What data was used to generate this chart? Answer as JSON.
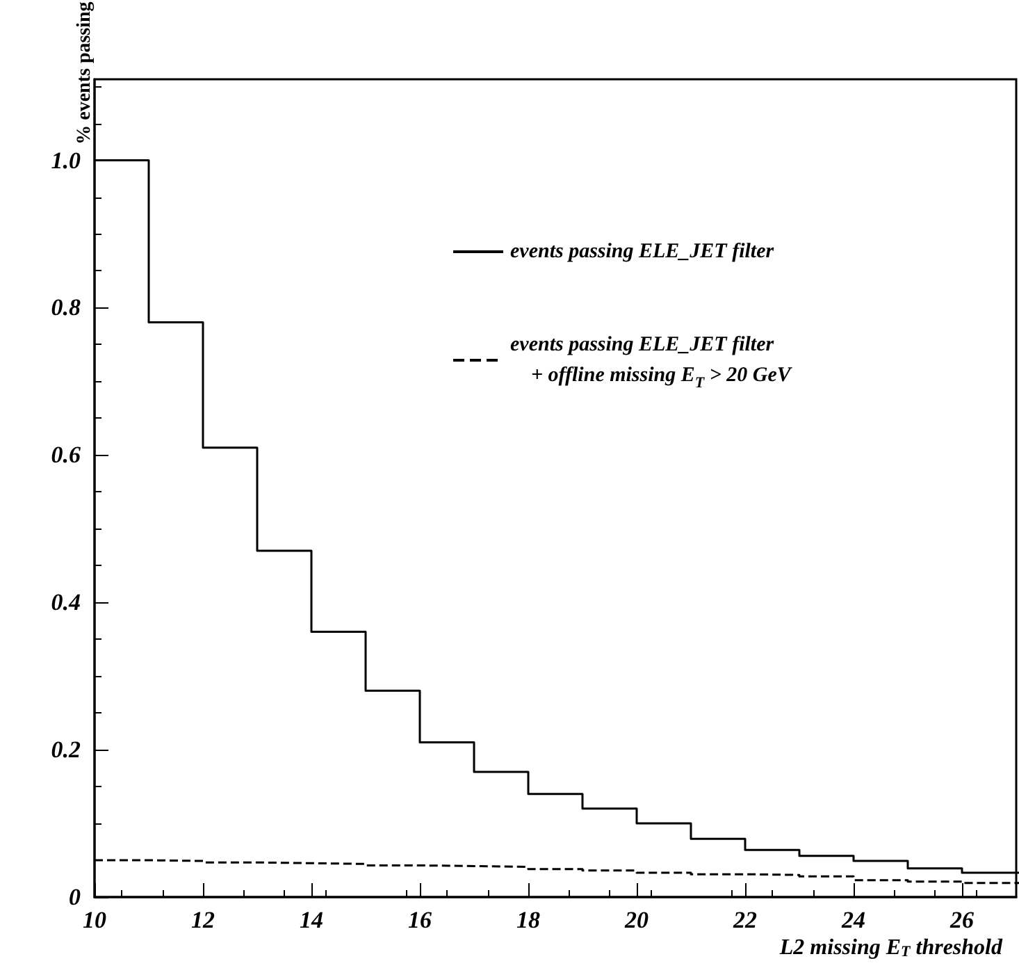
{
  "chart_data": {
    "type": "step",
    "xlabel": "L2 missing E$_{T}$ threshold",
    "ylabel": "% events passing",
    "x": [
      10,
      11,
      12,
      13,
      14,
      15,
      16,
      17,
      18,
      19,
      20,
      21,
      22,
      23,
      24,
      25,
      26
    ],
    "series": [
      {
        "name": "events passing ELE_JET filter",
        "color": "#000000",
        "line_style": "solid",
        "values": [
          1.0,
          0.78,
          0.61,
          0.47,
          0.36,
          0.28,
          0.21,
          0.17,
          0.14,
          0.12,
          0.1,
          0.079,
          0.064,
          0.056,
          0.049,
          0.039,
          0.033
        ]
      },
      {
        "name": "events passing ELE_JET filter\n    + offline missing E$_{T}$ > 20 GeV",
        "color": "#000000",
        "line_style": "dashed",
        "values": [
          0.05,
          0.049,
          0.047,
          0.046,
          0.045,
          0.043,
          0.042,
          0.041,
          0.038,
          0.036,
          0.033,
          0.031,
          0.03,
          0.028,
          0.023,
          0.021,
          0.019
        ]
      }
    ],
    "xlim": [
      10,
      27
    ],
    "xticks": [
      10,
      12,
      14,
      16,
      18,
      20,
      22,
      24,
      26
    ],
    "ylim": [
      0,
      1.11
    ],
    "yticks": [
      0,
      0.2,
      0.4,
      0.6,
      0.8,
      {
        "value": 1,
        "label": "1.0"
      }
    ],
    "legend": "top right",
    "grid": false,
    "marker": "none"
  }
}
